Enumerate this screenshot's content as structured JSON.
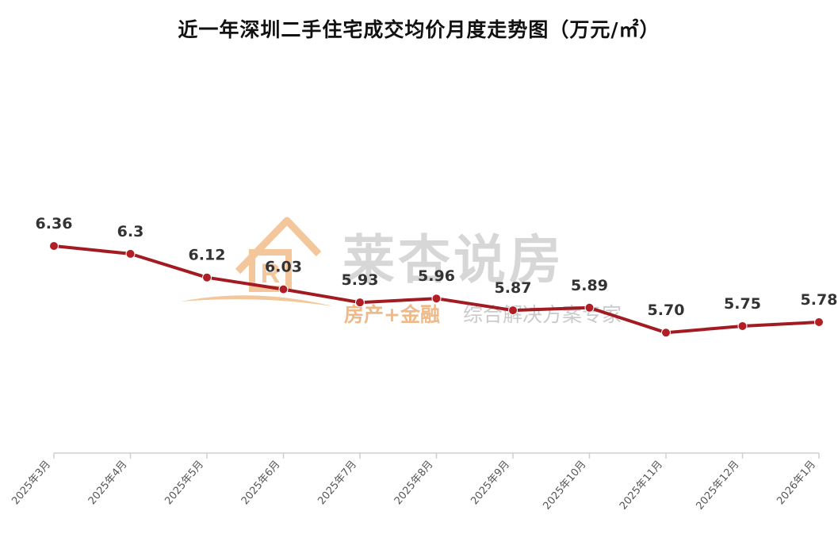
{
  "chart_data": {
    "type": "line",
    "title": "近一年深圳二手住宅成交均价月度走势图（万元/㎡）",
    "categories": [
      "2025年3月",
      "2025年4月",
      "2025年5月",
      "2025年6月",
      "2025年7月",
      "2025年8月",
      "2025年9月",
      "2025年10月",
      "2025年11月",
      "2025年12月",
      "2026年1月"
    ],
    "series": [
      {
        "values": [
          6.36,
          6.3,
          6.12,
          6.03,
          5.93,
          5.96,
          5.87,
          5.89,
          5.7,
          5.75,
          5.78
        ]
      }
    ],
    "data_labels": [
      "6.36",
      "6.3",
      "6.12",
      "6.03",
      "5.93",
      "5.96",
      "5.87",
      "5.89",
      "5.70",
      "5.75",
      "5.78"
    ],
    "grid": false,
    "legend": "none",
    "colors": {
      "line": "#a31b22",
      "marker": "#b21e25",
      "axis": "#cfcfcf"
    }
  },
  "watermark": {
    "brand": "莱杏说房",
    "tagline_accent": "房产+金融",
    "tagline_rest": "综合解决方案专家",
    "colors": {
      "logo": "#f3c496",
      "accent": "#efb783",
      "gray": "#cfcfcf"
    }
  }
}
